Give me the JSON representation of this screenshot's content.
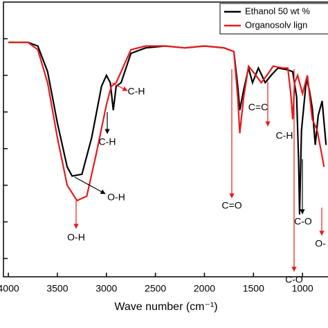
{
  "chart_data": {
    "type": "line",
    "x_label": "Wave number (cm⁻¹)",
    "xlim": [
      4050,
      740
    ],
    "ylim": [
      0,
      7.5
    ],
    "xticks": [
      4000,
      3500,
      3000,
      2500,
      2000,
      1500,
      1000
    ],
    "yticks": [
      0.5,
      1.5,
      2.5,
      3.5,
      4.5,
      5.5,
      6.5
    ],
    "series": [
      {
        "name": "Ethanol 50 wt %",
        "color": "#000000",
        "x": [
          4000,
          3800,
          3700,
          3600,
          3500,
          3400,
          3350,
          3250,
          3150,
          3050,
          3000,
          2960,
          2930,
          2900,
          2850,
          2750,
          2600,
          2400,
          2200,
          2000,
          1800,
          1700,
          1660,
          1640,
          1600,
          1550,
          1510,
          1450,
          1380,
          1320,
          1250,
          1150,
          1100,
          1060,
          1040,
          1030,
          1010,
          960,
          930,
          900,
          870,
          840,
          800,
          760
        ],
        "values": [
          6.4,
          6.4,
          6.3,
          5.6,
          4.2,
          3.0,
          2.75,
          2.8,
          3.8,
          5.2,
          5.5,
          5.3,
          4.55,
          5.2,
          5.3,
          6.1,
          6.25,
          6.3,
          6.25,
          6.3,
          6.25,
          6.15,
          5.2,
          4.55,
          5.1,
          5.7,
          5.3,
          5.7,
          5.3,
          5.5,
          5.7,
          5.65,
          5.6,
          4.9,
          3.2,
          1.7,
          4.0,
          5.4,
          5.1,
          4.6,
          3.6,
          4.4,
          4.8,
          3.6
        ]
      },
      {
        "name": "Organosolv lign",
        "color": "#e8191c",
        "x": [
          4000,
          3800,
          3700,
          3600,
          3500,
          3400,
          3300,
          3200,
          3100,
          3000,
          2950,
          2900,
          2800,
          2750,
          2600,
          2400,
          2200,
          2000,
          1800,
          1700,
          1660,
          1640,
          1600,
          1550,
          1490,
          1420,
          1350,
          1300,
          1200,
          1150,
          1120,
          1100,
          1080,
          1050,
          1000,
          950,
          900,
          850,
          780
        ],
        "values": [
          6.4,
          6.4,
          6.2,
          5.3,
          3.8,
          2.5,
          2.08,
          2.2,
          3.4,
          4.7,
          5.2,
          5.3,
          5.9,
          6.2,
          6.3,
          6.3,
          6.25,
          6.3,
          6.25,
          6.15,
          4.9,
          3.92,
          4.9,
          5.75,
          5.55,
          5.3,
          5.55,
          5.75,
          5.7,
          5.7,
          5.0,
          4.3,
          5.3,
          5.5,
          5.0,
          5.5,
          4.3,
          4.0,
          3.0
        ]
      }
    ],
    "annotations": [
      "C-H",
      "C-H",
      "O-H",
      "O-H",
      "C=O",
      "C=C",
      "C-H",
      "C-O",
      "C-O",
      "O-"
    ],
    "legend": "upper right"
  }
}
